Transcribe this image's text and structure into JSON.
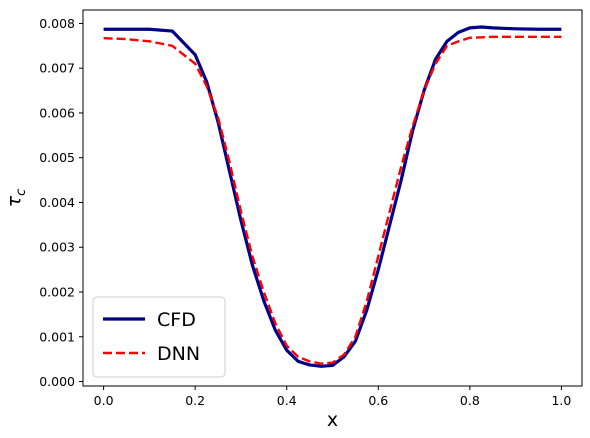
{
  "chart_data": {
    "type": "line",
    "title": "",
    "xlabel": "x",
    "ylabel": "τ_c",
    "xlim": [
      -0.045,
      1.045
    ],
    "ylim": [
      -0.0001,
      0.0083
    ],
    "xticks": [
      0.0,
      0.2,
      0.4,
      0.6,
      0.8,
      1.0
    ],
    "xtick_labels": [
      "0.0",
      "0.2",
      "0.4",
      "0.6",
      "0.8",
      "1.0"
    ],
    "yticks": [
      0.0,
      0.001,
      0.002,
      0.003,
      0.004,
      0.005,
      0.006,
      0.007,
      0.008
    ],
    "ytick_labels": [
      "0.000",
      "0.001",
      "0.002",
      "0.003",
      "0.004",
      "0.005",
      "0.006",
      "0.007",
      "0.008"
    ],
    "grid": false,
    "legend_position": "lower-left",
    "series": [
      {
        "name": "CFD",
        "color": "#00008b",
        "style": "solid",
        "x": [
          0.0,
          0.05,
          0.1,
          0.15,
          0.2,
          0.225,
          0.25,
          0.275,
          0.3,
          0.325,
          0.35,
          0.375,
          0.4,
          0.425,
          0.45,
          0.475,
          0.5,
          0.525,
          0.55,
          0.575,
          0.6,
          0.625,
          0.65,
          0.675,
          0.7,
          0.725,
          0.75,
          0.775,
          0.8,
          0.825,
          0.85,
          0.9,
          0.95,
          1.0
        ],
        "y": [
          0.00787,
          0.00787,
          0.00787,
          0.00783,
          0.0073,
          0.0067,
          0.0058,
          0.0047,
          0.0036,
          0.0026,
          0.0018,
          0.00115,
          0.0007,
          0.00045,
          0.00037,
          0.00034,
          0.00036,
          0.00055,
          0.0009,
          0.0016,
          0.0025,
          0.0035,
          0.0045,
          0.0056,
          0.0065,
          0.0072,
          0.0076,
          0.0078,
          0.0079,
          0.00792,
          0.0079,
          0.00788,
          0.00787,
          0.00787
        ]
      },
      {
        "name": "DNN",
        "color": "#ff0000",
        "style": "dashed",
        "x": [
          0.0,
          0.05,
          0.1,
          0.15,
          0.2,
          0.225,
          0.25,
          0.275,
          0.3,
          0.325,
          0.35,
          0.375,
          0.4,
          0.425,
          0.45,
          0.475,
          0.5,
          0.525,
          0.55,
          0.575,
          0.6,
          0.625,
          0.65,
          0.675,
          0.7,
          0.725,
          0.75,
          0.775,
          0.8,
          0.85,
          0.9,
          0.95,
          1.0
        ],
        "y": [
          0.00767,
          0.00765,
          0.0076,
          0.0075,
          0.0071,
          0.0066,
          0.0059,
          0.0049,
          0.0038,
          0.0028,
          0.002,
          0.0013,
          0.0008,
          0.00055,
          0.00045,
          0.0004,
          0.00042,
          0.0006,
          0.001,
          0.0018,
          0.0028,
          0.0038,
          0.0048,
          0.0057,
          0.0065,
          0.0071,
          0.0075,
          0.0076,
          0.00768,
          0.0077,
          0.0077,
          0.0077,
          0.0077
        ]
      }
    ]
  }
}
